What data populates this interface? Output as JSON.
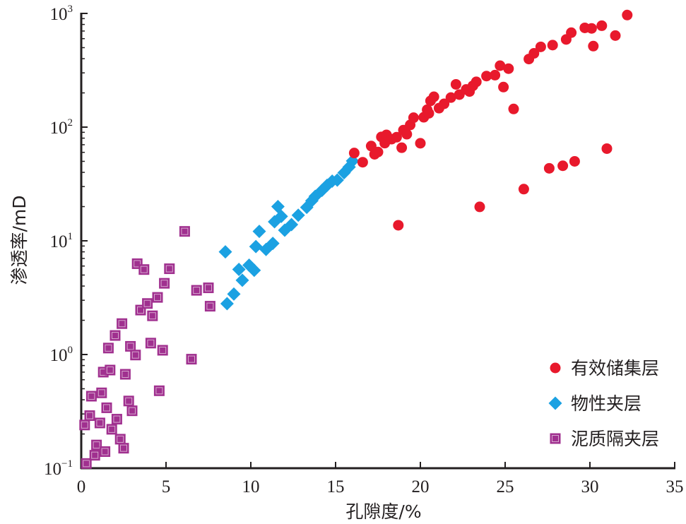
{
  "chart_data": {
    "type": "scatter",
    "xlabel": "孔隙度/%",
    "ylabel": "渗透率/mD",
    "xlim": [
      0,
      35
    ],
    "ylim": [
      0.1,
      1000
    ],
    "y_scale": "log",
    "x_ticks": [
      "0",
      "5",
      "10",
      "15",
      "20",
      "25",
      "30",
      "35"
    ],
    "y_ticks": [
      {
        "value": 0.1,
        "base": "10",
        "exp": "−1"
      },
      {
        "value": 1,
        "base": "10",
        "exp": "0"
      },
      {
        "value": 10,
        "base": "10",
        "exp": "1"
      },
      {
        "value": 100,
        "base": "10",
        "exp": "2"
      },
      {
        "value": 1000,
        "base": "10",
        "exp": "3"
      }
    ],
    "grid": false,
    "legend_position": "bottom-right",
    "series": [
      {
        "name": "有效储集层",
        "marker": "circle",
        "color": "#e8192c",
        "points": [
          [
            16.1,
            59.2
          ],
          [
            16.6,
            49.1
          ],
          [
            17.1,
            68.2
          ],
          [
            17.3,
            57.7
          ],
          [
            17.5,
            60.4
          ],
          [
            17.7,
            82.0
          ],
          [
            17.9,
            72.3
          ],
          [
            18.0,
            85.5
          ],
          [
            18.3,
            78.4
          ],
          [
            18.6,
            81.5
          ],
          [
            18.7,
            13.7
          ],
          [
            18.9,
            65.9
          ],
          [
            19.0,
            94.1
          ],
          [
            19.2,
            86.6
          ],
          [
            19.4,
            104.5
          ],
          [
            19.6,
            121.0
          ],
          [
            20.0,
            72.1
          ],
          [
            20.2,
            122.1
          ],
          [
            20.4,
            142.1
          ],
          [
            20.5,
            132.2
          ],
          [
            20.6,
            170.1
          ],
          [
            20.8,
            184.9
          ],
          [
            21.1,
            146.8
          ],
          [
            21.4,
            160.3
          ],
          [
            21.8,
            181.9
          ],
          [
            22.1,
            237.6
          ],
          [
            22.3,
            193.2
          ],
          [
            22.7,
            214.4
          ],
          [
            22.9,
            205.7
          ],
          [
            23.1,
            231.0
          ],
          [
            23.3,
            250.4
          ],
          [
            23.5,
            19.9
          ],
          [
            23.9,
            281.2
          ],
          [
            24.4,
            286.4
          ],
          [
            24.7,
            347.0
          ],
          [
            24.9,
            225.0
          ],
          [
            25.2,
            326.8
          ],
          [
            25.5,
            144.5
          ],
          [
            26.1,
            28.5
          ],
          [
            26.4,
            397.1
          ],
          [
            26.7,
            445.5
          ],
          [
            27.1,
            508.0
          ],
          [
            27.6,
            43.4
          ],
          [
            27.8,
            526.4
          ],
          [
            28.4,
            45.7
          ],
          [
            28.6,
            590.5
          ],
          [
            28.9,
            677.2
          ],
          [
            29.1,
            50.0
          ],
          [
            29.7,
            746.3
          ],
          [
            30.1,
            738.1
          ],
          [
            30.2,
            515.8
          ],
          [
            30.7,
            779.6
          ],
          [
            31.0,
            64.7
          ],
          [
            31.5,
            638.4
          ],
          [
            32.2,
            967.8
          ]
        ]
      },
      {
        "name": "物性夹层",
        "marker": "diamond",
        "color": "#1ba1e2",
        "points": [
          [
            8.5,
            8.0
          ],
          [
            8.6,
            2.8
          ],
          [
            9.0,
            3.4
          ],
          [
            9.3,
            5.6
          ],
          [
            9.5,
            4.5
          ],
          [
            9.9,
            6.1
          ],
          [
            10.2,
            5.5
          ],
          [
            10.3,
            8.9
          ],
          [
            10.5,
            12.1
          ],
          [
            10.9,
            8.4
          ],
          [
            11.3,
            9.5
          ],
          [
            11.4,
            14.7
          ],
          [
            11.6,
            20.0
          ],
          [
            11.8,
            16.4
          ],
          [
            12.0,
            12.4
          ],
          [
            12.4,
            13.9
          ],
          [
            12.8,
            16.8
          ],
          [
            13.3,
            19.7
          ],
          [
            13.6,
            22.5
          ],
          [
            13.8,
            24.6
          ],
          [
            14.2,
            27.8
          ],
          [
            14.5,
            30.8
          ],
          [
            14.8,
            33.5
          ],
          [
            15.1,
            34.2
          ],
          [
            15.5,
            39.7
          ],
          [
            15.8,
            44.6
          ],
          [
            16.0,
            50.4
          ]
        ]
      },
      {
        "name": "泥质隔夹层",
        "marker": "square",
        "color": "#a0308f",
        "points": [
          [
            0.2,
            0.24
          ],
          [
            0.3,
            0.11
          ],
          [
            0.5,
            0.29
          ],
          [
            0.6,
            0.43
          ],
          [
            0.8,
            0.13
          ],
          [
            0.9,
            0.16
          ],
          [
            1.1,
            0.25
          ],
          [
            1.2,
            0.46
          ],
          [
            1.3,
            0.7
          ],
          [
            1.4,
            0.14
          ],
          [
            1.5,
            0.34
          ],
          [
            1.6,
            1.14
          ],
          [
            1.7,
            0.73
          ],
          [
            1.8,
            0.22
          ],
          [
            2.0,
            1.47
          ],
          [
            2.1,
            0.27
          ],
          [
            2.3,
            0.18
          ],
          [
            2.4,
            1.87
          ],
          [
            2.5,
            0.15
          ],
          [
            2.6,
            0.67
          ],
          [
            2.8,
            0.39
          ],
          [
            2.9,
            1.18
          ],
          [
            3.0,
            0.32
          ],
          [
            3.2,
            0.99
          ],
          [
            3.3,
            6.29
          ],
          [
            3.5,
            2.46
          ],
          [
            3.7,
            5.59
          ],
          [
            3.9,
            2.81
          ],
          [
            4.1,
            1.26
          ],
          [
            4.2,
            2.19
          ],
          [
            4.5,
            3.18
          ],
          [
            4.6,
            0.48
          ],
          [
            4.8,
            1.09
          ],
          [
            4.9,
            4.23
          ],
          [
            5.2,
            5.68
          ],
          [
            6.1,
            12.1
          ],
          [
            6.5,
            0.91
          ],
          [
            6.8,
            3.67
          ],
          [
            7.5,
            3.86
          ],
          [
            7.6,
            2.66
          ]
        ]
      }
    ]
  }
}
